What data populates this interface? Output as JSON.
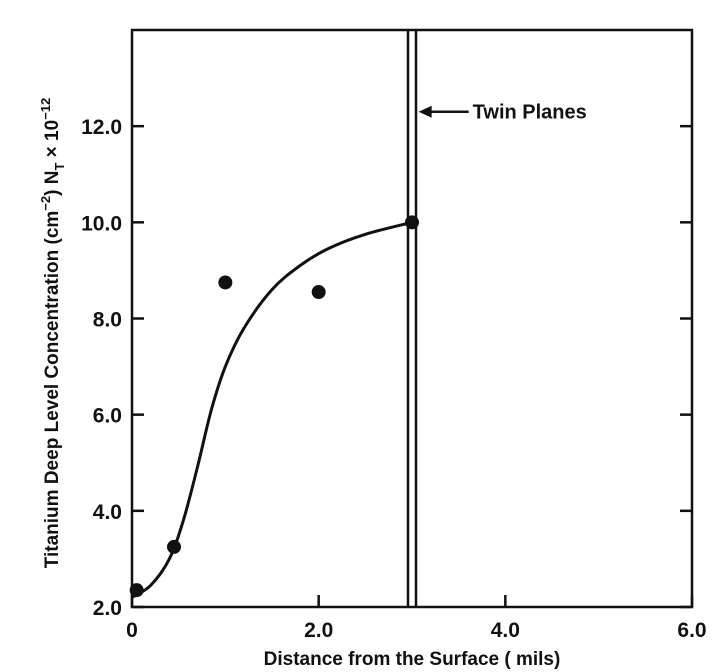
{
  "chart_data": {
    "type": "scatter",
    "xlabel": "Distance from the Surface ( mils)",
    "ylabel": "Titanium Deep Level Concentration (cm",
    "ylabel_exp1": "−2",
    "ylabel_mid": ") N",
    "ylabel_sub": "T",
    "ylabel_mid2": " × 10",
    "ylabel_exp2": "−12",
    "xlim": [
      0,
      6.0
    ],
    "ylim": [
      2.0,
      14.0
    ],
    "x_ticks": [
      0,
      2.0,
      4.0,
      6.0
    ],
    "x_tick_labels": [
      "0",
      "2.0",
      "4.0",
      "6.0"
    ],
    "y_ticks": [
      2.0,
      4.0,
      6.0,
      8.0,
      10.0,
      12.0
    ],
    "y_tick_labels": [
      "2.0",
      "4.0",
      "6.0",
      "8.0",
      "10.0",
      "12.0"
    ],
    "grid": false,
    "series": [
      {
        "kind": "points",
        "x": [
          0.05,
          0.45,
          1.0,
          2.0,
          3.0
        ],
        "y": [
          2.35,
          3.25,
          8.75,
          8.55,
          10.0
        ]
      },
      {
        "kind": "curve",
        "x": [
          0.0,
          0.2,
          0.4,
          0.55,
          0.7,
          0.85,
          1.0,
          1.2,
          1.5,
          1.8,
          2.1,
          2.5,
          3.0
        ],
        "y": [
          2.2,
          2.45,
          3.0,
          3.8,
          4.9,
          6.1,
          7.0,
          7.8,
          8.6,
          9.1,
          9.45,
          9.75,
          10.0
        ]
      }
    ],
    "vline_x": 3.0,
    "annotations": [
      {
        "text": "Twin Planes",
        "x": 3.05,
        "y": 12.3
      }
    ]
  }
}
